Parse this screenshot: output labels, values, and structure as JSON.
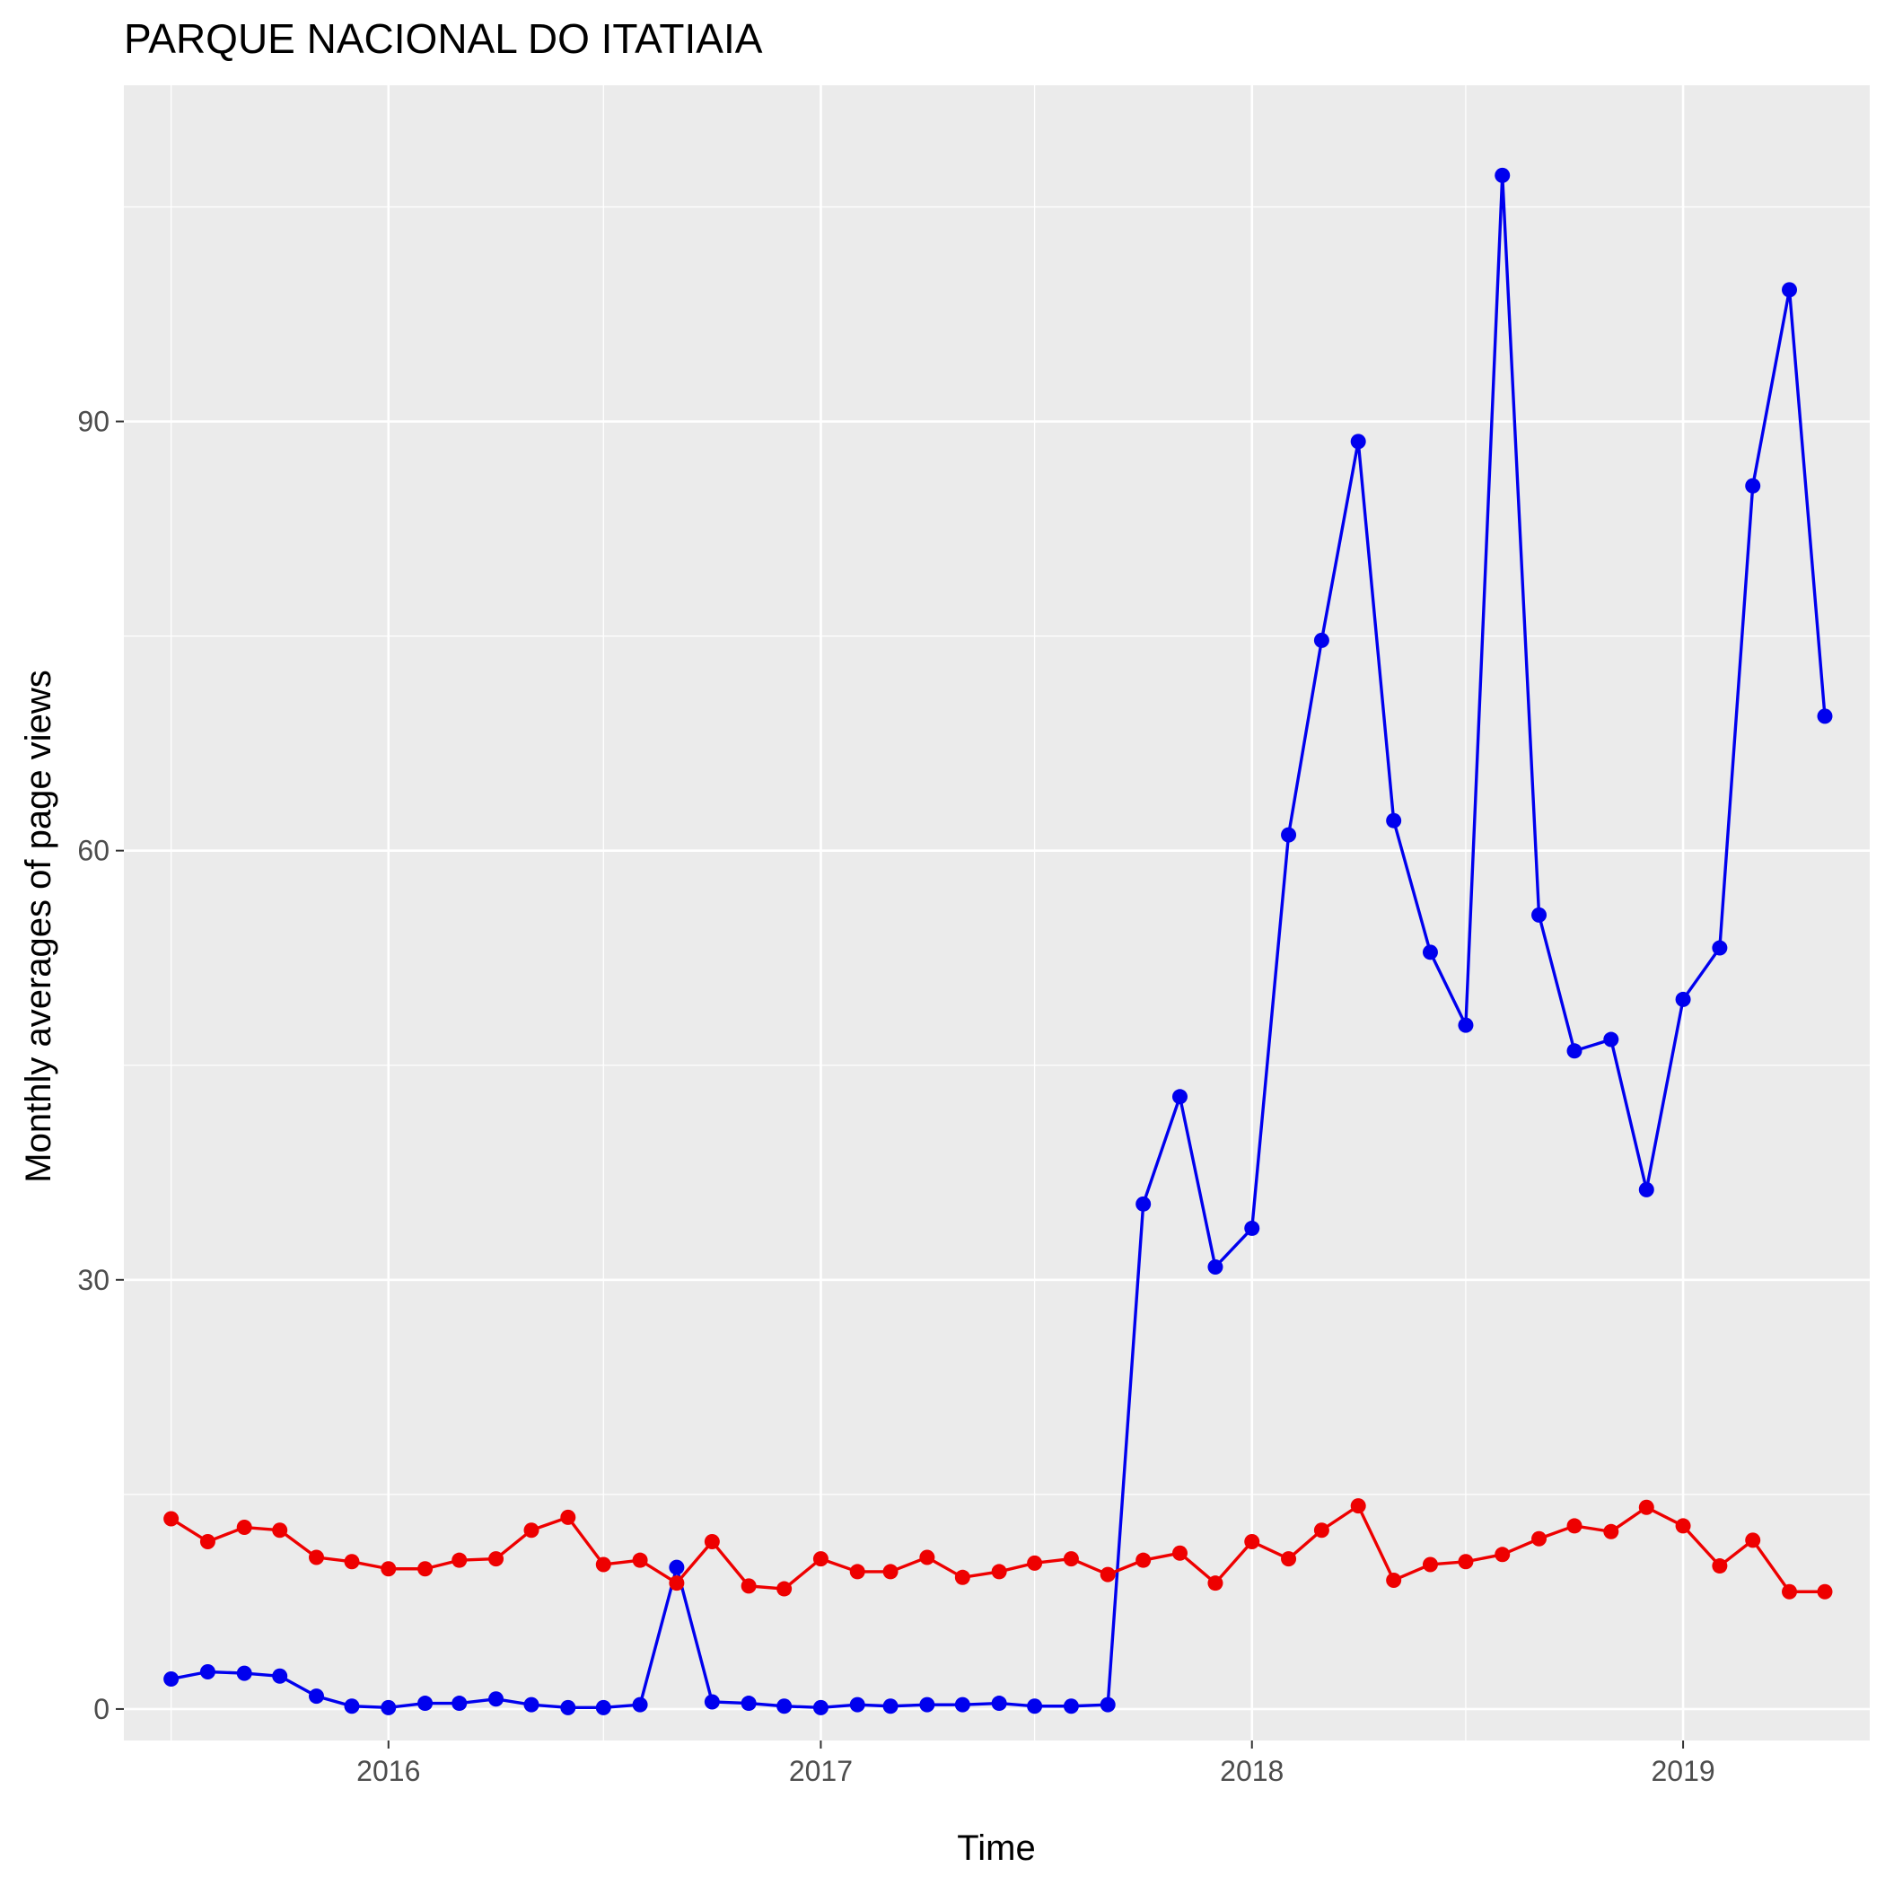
{
  "chart_data": {
    "type": "line",
    "title": "PARQUE NACIONAL DO ITATIAIA",
    "xlabel": "Time",
    "ylabel": "Monthly averages of page views",
    "x_ticks": [
      "2016",
      "2017",
      "2018",
      "2019"
    ],
    "y_ticks": [
      0,
      30,
      60,
      90
    ],
    "xlim": [
      "2015-05-22",
      "2019-06-08"
    ],
    "ylim": [
      -2.2,
      113.5
    ],
    "grid": true,
    "legend": "none",
    "x": [
      "2015-07-01",
      "2015-08-01",
      "2015-09-01",
      "2015-10-01",
      "2015-11-01",
      "2015-12-01",
      "2016-01-01",
      "2016-02-01",
      "2016-03-01",
      "2016-04-01",
      "2016-05-01",
      "2016-06-01",
      "2016-07-01",
      "2016-08-01",
      "2016-09-01",
      "2016-10-01",
      "2016-11-01",
      "2016-12-01",
      "2017-01-01",
      "2017-02-01",
      "2017-03-01",
      "2017-04-01",
      "2017-05-01",
      "2017-06-01",
      "2017-07-01",
      "2017-08-01",
      "2017-09-01",
      "2017-10-01",
      "2017-11-01",
      "2017-12-01",
      "2018-01-01",
      "2018-02-01",
      "2018-03-01",
      "2018-04-01",
      "2018-05-01",
      "2018-06-01",
      "2018-07-01",
      "2018-08-01",
      "2018-09-01",
      "2018-10-01",
      "2018-11-01",
      "2018-12-01",
      "2019-01-01",
      "2019-02-01",
      "2019-03-01",
      "2019-04-01",
      "2019-05-01"
    ],
    "series": [
      {
        "color": "#0000ee",
        "values": [
          2.1,
          2.6,
          2.5,
          2.3,
          0.9,
          0.2,
          0.1,
          0.4,
          0.4,
          0.7,
          0.3,
          0.1,
          0.1,
          0.3,
          9.9,
          0.5,
          0.4,
          0.2,
          0.1,
          0.3,
          0.2,
          0.3,
          0.3,
          0.4,
          0.2,
          0.2,
          0.3,
          35.3,
          42.8,
          30.9,
          33.6,
          61.1,
          74.7,
          88.6,
          62.1,
          52.9,
          47.8,
          107.2,
          55.5,
          46.0,
          46.8,
          36.3,
          49.6,
          53.2,
          85.5,
          99.2,
          69.4
        ]
      },
      {
        "color": "#ee0000",
        "values": [
          13.3,
          11.7,
          12.7,
          12.5,
          10.6,
          10.3,
          9.8,
          9.8,
          10.4,
          10.5,
          12.5,
          13.4,
          10.1,
          10.4,
          8.8,
          11.7,
          8.6,
          8.4,
          10.5,
          9.6,
          9.6,
          10.6,
          9.2,
          9.6,
          10.2,
          10.5,
          9.4,
          10.4,
          10.9,
          8.8,
          11.7,
          10.5,
          12.5,
          14.2,
          9.0,
          10.1,
          10.3,
          10.8,
          11.9,
          12.8,
          12.4,
          14.1,
          12.8,
          10.0,
          11.8,
          8.2,
          8.2
        ]
      }
    ]
  }
}
